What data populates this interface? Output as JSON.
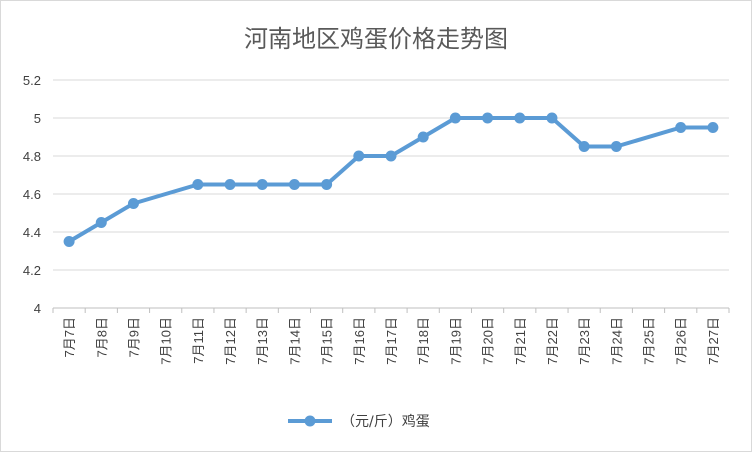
{
  "chart_data": {
    "type": "line",
    "title": "河南地区鸡蛋价格走势图",
    "xlabel": "",
    "ylabel": "",
    "categories": [
      "7月7日",
      "7月8日",
      "7月9日",
      "7月10日",
      "7月11日",
      "7月12日",
      "7月13日",
      "7月14日",
      "7月15日",
      "7月16日",
      "7月17日",
      "7月18日",
      "7月19日",
      "7月20日",
      "7月21日",
      "7月22日",
      "7月23日",
      "7月24日",
      "7月25日",
      "7月26日",
      "7月27日"
    ],
    "series": [
      {
        "name": "（元/斤）鸡蛋",
        "color": "#5b9bd5",
        "values": [
          4.35,
          4.45,
          4.55,
          null,
          4.65,
          4.65,
          4.65,
          4.65,
          4.65,
          4.8,
          4.8,
          4.9,
          5.0,
          5.0,
          5.0,
          5.0,
          4.85,
          4.85,
          null,
          4.95,
          4.95
        ]
      }
    ],
    "ylim": [
      4,
      5.2
    ],
    "yticks": [
      4,
      4.2,
      4.4,
      4.6,
      4.8,
      5,
      5.2
    ],
    "ytick_labels": [
      "4",
      "4.2",
      "4.4",
      "4.6",
      "4.8",
      "5",
      "5.2"
    ],
    "grid": true,
    "legend_position": "bottom"
  }
}
